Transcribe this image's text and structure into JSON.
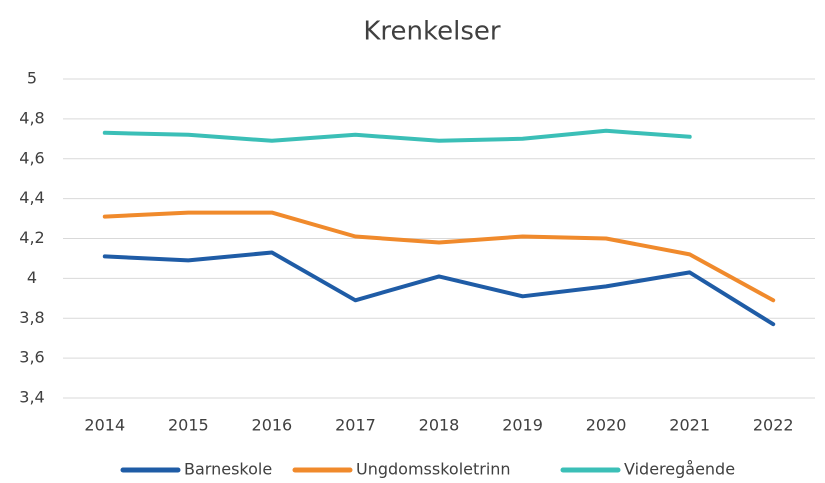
{
  "chart_data": {
    "type": "line",
    "title": "Krenkelser",
    "categories": [
      "2014",
      "2015",
      "2016",
      "2017",
      "2018",
      "2019",
      "2020",
      "2021",
      "2022"
    ],
    "series": [
      {
        "name": "Barneskole",
        "color": "#1f5ca6",
        "values": [
          4.11,
          4.09,
          4.13,
          3.89,
          4.01,
          3.91,
          3.96,
          4.03,
          3.77
        ]
      },
      {
        "name": "Ungdomsskoletrinn",
        "color": "#f08a2c",
        "values": [
          4.31,
          4.33,
          4.33,
          4.21,
          4.18,
          4.21,
          4.2,
          4.12,
          3.89
        ]
      },
      {
        "name": "Videregående",
        "color": "#3bbfb7",
        "values": [
          4.73,
          4.72,
          4.69,
          4.72,
          4.69,
          4.7,
          4.74,
          4.71,
          null
        ]
      }
    ],
    "ylim": [
      3.4,
      5
    ],
    "yticks": [
      {
        "value": 3.4,
        "label": "3,4"
      },
      {
        "value": 3.6,
        "label": "3,6"
      },
      {
        "value": 3.8,
        "label": "3,8"
      },
      4,
      {
        "value": 4.2,
        "label": "4,2"
      },
      {
        "value": 4.4,
        "label": "4,4"
      },
      {
        "value": 4.6,
        "label": "4,6"
      },
      {
        "value": 4.8,
        "label": "4,8"
      },
      5
    ],
    "grid": true,
    "legend": "bottom"
  }
}
